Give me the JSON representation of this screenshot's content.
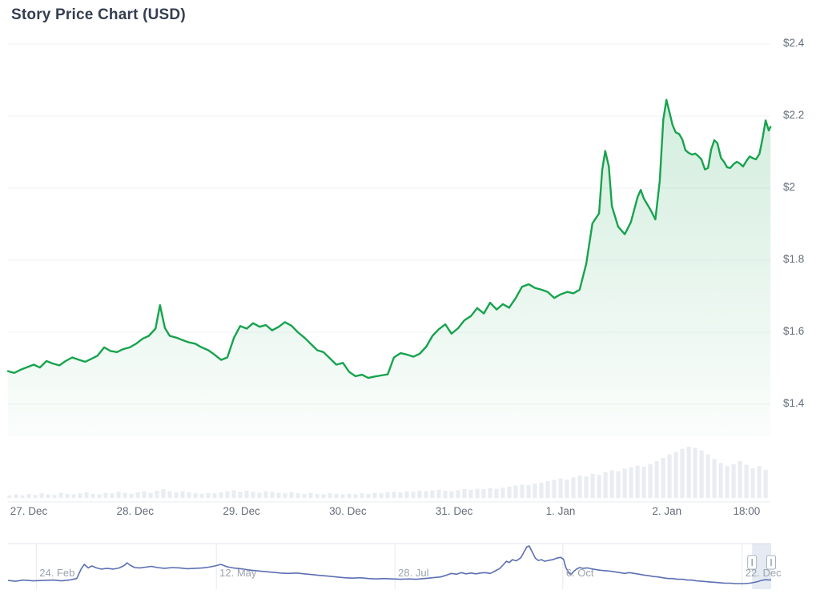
{
  "header": {
    "title": "Story Price Chart (USD)"
  },
  "colors": {
    "background": "#ffffff",
    "title_text": "#343e50",
    "axis_label": "#646d7a",
    "nav_label": "#9aa3ad",
    "grid_line": "#f1f2f5",
    "axis_line": "#e9ebef",
    "price_line": "#17a34e",
    "price_fill_top": "rgba(26,163,80,0.20)",
    "price_fill_bottom": "rgba(26,163,80,0.02)",
    "volume_bar": "#e9edf2",
    "nav_line": "#5c6fb4",
    "nav_grid": "#e7e9ee",
    "nav_border": "#e3e6ec",
    "selection_mask": "rgba(101,128,180,0.16)",
    "handle_fill": "#ffffff",
    "handle_border": "#a8b1bf",
    "handle_slit": "#97a1af"
  },
  "chart_data": {
    "type": "area",
    "title": "Story Price Chart (USD)",
    "unit": "USD",
    "grid": "horizontal",
    "legend": "none",
    "y_axis": {
      "side": "right",
      "labels": [
        "$2.4",
        "$2.2",
        "$2",
        "$1.8",
        "$1.6",
        "$1.4"
      ],
      "values": [
        2.4,
        2.2,
        2,
        1.8,
        1.6,
        1.4
      ]
    },
    "x_axis": {
      "note": "t = hours since 27 Dec 00:00",
      "ticks": [
        {
          "label": "27. Dec",
          "t": 0
        },
        {
          "label": "28. Dec",
          "t": 24
        },
        {
          "label": "29. Dec",
          "t": 48
        },
        {
          "label": "30. Dec",
          "t": 72
        },
        {
          "label": "31. Dec",
          "t": 96
        },
        {
          "label": "1. Jan",
          "t": 120
        },
        {
          "label": "2. Jan",
          "t": 144
        },
        {
          "label": "18:00",
          "t": 162
        }
      ]
    },
    "price_series": {
      "name": "Story price (USD)",
      "points": [
        [
          -4.7,
          1.492
        ],
        [
          -3.3,
          1.487
        ],
        [
          -1.8,
          1.496
        ],
        [
          -0.4,
          1.503
        ],
        [
          1.1,
          1.51
        ],
        [
          2.5,
          1.502
        ],
        [
          4,
          1.52
        ],
        [
          5.4,
          1.513
        ],
        [
          6.9,
          1.508
        ],
        [
          8.3,
          1.52
        ],
        [
          9.8,
          1.53
        ],
        [
          11.2,
          1.524
        ],
        [
          12.7,
          1.518
        ],
        [
          14.1,
          1.526
        ],
        [
          15.5,
          1.535
        ],
        [
          17,
          1.558
        ],
        [
          18.4,
          1.548
        ],
        [
          19.9,
          1.545
        ],
        [
          21.3,
          1.553
        ],
        [
          22.8,
          1.558
        ],
        [
          24.2,
          1.568
        ],
        [
          25.7,
          1.582
        ],
        [
          27.1,
          1.59
        ],
        [
          28.6,
          1.61
        ],
        [
          29.6,
          1.675
        ],
        [
          30.7,
          1.612
        ],
        [
          31.8,
          1.59
        ],
        [
          33.3,
          1.585
        ],
        [
          34.7,
          1.578
        ],
        [
          36.1,
          1.572
        ],
        [
          37.6,
          1.568
        ],
        [
          39,
          1.558
        ],
        [
          40.5,
          1.55
        ],
        [
          41.9,
          1.538
        ],
        [
          43.4,
          1.523
        ],
        [
          44.8,
          1.53
        ],
        [
          46.3,
          1.585
        ],
        [
          47.7,
          1.617
        ],
        [
          49.2,
          1.61
        ],
        [
          50.6,
          1.625
        ],
        [
          52.1,
          1.615
        ],
        [
          53.5,
          1.62
        ],
        [
          54.9,
          1.605
        ],
        [
          56.4,
          1.615
        ],
        [
          57.8,
          1.628
        ],
        [
          59.3,
          1.618
        ],
        [
          60.7,
          1.6
        ],
        [
          62.2,
          1.585
        ],
        [
          63.6,
          1.568
        ],
        [
          65.1,
          1.55
        ],
        [
          66.5,
          1.545
        ],
        [
          68,
          1.527
        ],
        [
          69.4,
          1.51
        ],
        [
          70.9,
          1.515
        ],
        [
          72.3,
          1.49
        ],
        [
          73.7,
          1.478
        ],
        [
          75.2,
          1.482
        ],
        [
          76.6,
          1.473
        ],
        [
          78.1,
          1.477
        ],
        [
          79.5,
          1.48
        ],
        [
          81,
          1.483
        ],
        [
          82.4,
          1.53
        ],
        [
          83.9,
          1.542
        ],
        [
          85.3,
          1.538
        ],
        [
          86.8,
          1.532
        ],
        [
          88.2,
          1.54
        ],
        [
          89.7,
          1.56
        ],
        [
          91.1,
          1.59
        ],
        [
          92.5,
          1.608
        ],
        [
          94,
          1.622
        ],
        [
          95.4,
          1.596
        ],
        [
          96.9,
          1.611
        ],
        [
          98.3,
          1.633
        ],
        [
          99.8,
          1.645
        ],
        [
          101.2,
          1.667
        ],
        [
          102.7,
          1.652
        ],
        [
          104.1,
          1.682
        ],
        [
          105.6,
          1.663
        ],
        [
          107,
          1.678
        ],
        [
          108.4,
          1.668
        ],
        [
          109.9,
          1.695
        ],
        [
          111.3,
          1.726
        ],
        [
          112.8,
          1.733
        ],
        [
          114.2,
          1.723
        ],
        [
          115.7,
          1.718
        ],
        [
          117.1,
          1.712
        ],
        [
          118.6,
          1.695
        ],
        [
          120,
          1.705
        ],
        [
          121.5,
          1.712
        ],
        [
          122.9,
          1.708
        ],
        [
          124.3,
          1.718
        ],
        [
          125.8,
          1.79
        ],
        [
          127.2,
          1.902
        ],
        [
          128.7,
          1.93
        ],
        [
          129.4,
          2.05
        ],
        [
          130.1,
          2.103
        ],
        [
          130.9,
          2.06
        ],
        [
          131.6,
          1.95
        ],
        [
          133,
          1.893
        ],
        [
          134.5,
          1.872
        ],
        [
          135.9,
          1.906
        ],
        [
          137.4,
          1.975
        ],
        [
          138.1,
          1.995
        ],
        [
          138.8,
          1.971
        ],
        [
          140.3,
          1.94
        ],
        [
          141.4,
          1.913
        ],
        [
          142.4,
          2.02
        ],
        [
          143.2,
          2.19
        ],
        [
          143.9,
          2.245
        ],
        [
          144.6,
          2.21
        ],
        [
          145.3,
          2.175
        ],
        [
          146,
          2.155
        ],
        [
          146.8,
          2.15
        ],
        [
          147.5,
          2.135
        ],
        [
          148.2,
          2.105
        ],
        [
          148.9,
          2.098
        ],
        [
          149.7,
          2.093
        ],
        [
          150.4,
          2.096
        ],
        [
          151.1,
          2.089
        ],
        [
          151.8,
          2.08
        ],
        [
          152.6,
          2.052
        ],
        [
          153.3,
          2.056
        ],
        [
          154,
          2.107
        ],
        [
          154.7,
          2.133
        ],
        [
          155.4,
          2.125
        ],
        [
          156.2,
          2.084
        ],
        [
          156.9,
          2.073
        ],
        [
          157.6,
          2.058
        ],
        [
          158.3,
          2.056
        ],
        [
          159.1,
          2.067
        ],
        [
          159.8,
          2.073
        ],
        [
          160.5,
          2.068
        ],
        [
          161.2,
          2.06
        ],
        [
          162,
          2.076
        ],
        [
          162.7,
          2.088
        ],
        [
          163.4,
          2.083
        ],
        [
          164.1,
          2.08
        ],
        [
          164.9,
          2.095
        ],
        [
          165.6,
          2.138
        ],
        [
          166.3,
          2.188
        ],
        [
          167,
          2.16
        ],
        [
          167.4,
          2.17
        ]
      ]
    },
    "volume_series": {
      "name": "Volume",
      "scale": "relative 0-100",
      "t_start": -4.34,
      "t_step": 1.446,
      "values": [
        5,
        7,
        5,
        8,
        6,
        9,
        7,
        6,
        10,
        8,
        7,
        9,
        11,
        8,
        7,
        10,
        9,
        12,
        10,
        8,
        11,
        13,
        10,
        14,
        17,
        13,
        11,
        13,
        11,
        9,
        8,
        10,
        9,
        11,
        13,
        15,
        12,
        14,
        12,
        10,
        13,
        12,
        10,
        9,
        11,
        9,
        8,
        10,
        8,
        7,
        9,
        8,
        7,
        8,
        7,
        9,
        8,
        10,
        9,
        11,
        12,
        11,
        13,
        12,
        14,
        13,
        15,
        16,
        14,
        13,
        15,
        17,
        16,
        18,
        17,
        19,
        18,
        20,
        22,
        24,
        26,
        25,
        28,
        30,
        33,
        35,
        38,
        36,
        40,
        44,
        42,
        47,
        45,
        50,
        54,
        52,
        57,
        60,
        63,
        61,
        66,
        72,
        78,
        85,
        90,
        96,
        100,
        98,
        93,
        85,
        76,
        68,
        62,
        66,
        72,
        65,
        58,
        62,
        55
      ]
    },
    "navigator": {
      "type": "line",
      "scale": "relative 0-100, f = fraction of full range",
      "ticks": [
        {
          "label": "24. Feb",
          "f": 0.037
        },
        {
          "label": "12. May",
          "f": 0.273
        },
        {
          "label": "28. Jul",
          "f": 0.507
        },
        {
          "label": "6. Oct",
          "f": 0.727
        },
        {
          "label": "22. Dec",
          "f": 0.962
        }
      ],
      "selection": {
        "from": 0.975,
        "to": 1
      },
      "points": [
        [
          0,
          12
        ],
        [
          0.01,
          10
        ],
        [
          0.02,
          13
        ],
        [
          0.033,
          11
        ],
        [
          0.045,
          12
        ],
        [
          0.06,
          13
        ],
        [
          0.07,
          11
        ],
        [
          0.08,
          13
        ],
        [
          0.09,
          17
        ],
        [
          0.096,
          42
        ],
        [
          0.1,
          53
        ],
        [
          0.105,
          44
        ],
        [
          0.11,
          49
        ],
        [
          0.116,
          44
        ],
        [
          0.122,
          41
        ],
        [
          0.13,
          43
        ],
        [
          0.138,
          41
        ],
        [
          0.146,
          44
        ],
        [
          0.152,
          50
        ],
        [
          0.156,
          57
        ],
        [
          0.16,
          51
        ],
        [
          0.166,
          45
        ],
        [
          0.173,
          44
        ],
        [
          0.18,
          46
        ],
        [
          0.188,
          48
        ],
        [
          0.196,
          45
        ],
        [
          0.205,
          43
        ],
        [
          0.215,
          45
        ],
        [
          0.225,
          44
        ],
        [
          0.235,
          42
        ],
        [
          0.245,
          43
        ],
        [
          0.255,
          44
        ],
        [
          0.263,
          46
        ],
        [
          0.271,
          49
        ],
        [
          0.279,
          53
        ],
        [
          0.287,
          47
        ],
        [
          0.295,
          44
        ],
        [
          0.305,
          42
        ],
        [
          0.315,
          39
        ],
        [
          0.325,
          37
        ],
        [
          0.336,
          35
        ],
        [
          0.346,
          33
        ],
        [
          0.357,
          31
        ],
        [
          0.367,
          30
        ],
        [
          0.378,
          31
        ],
        [
          0.388,
          29
        ],
        [
          0.399,
          27
        ],
        [
          0.409,
          25
        ],
        [
          0.42,
          23
        ],
        [
          0.43,
          21
        ],
        [
          0.441,
          19
        ],
        [
          0.451,
          18
        ],
        [
          0.462,
          19
        ],
        [
          0.472,
          17
        ],
        [
          0.483,
          16
        ],
        [
          0.493,
          17
        ],
        [
          0.504,
          16
        ],
        [
          0.514,
          15
        ],
        [
          0.525,
          16
        ],
        [
          0.535,
          15
        ],
        [
          0.546,
          17
        ],
        [
          0.556,
          19
        ],
        [
          0.567,
          21
        ],
        [
          0.575,
          26
        ],
        [
          0.581,
          30
        ],
        [
          0.588,
          28
        ],
        [
          0.594,
          32
        ],
        [
          0.6,
          29
        ],
        [
          0.607,
          31
        ],
        [
          0.613,
          29
        ],
        [
          0.619,
          31
        ],
        [
          0.625,
          32
        ],
        [
          0.632,
          30
        ],
        [
          0.638,
          36
        ],
        [
          0.644,
          42
        ],
        [
          0.649,
          52
        ],
        [
          0.653,
          61
        ],
        [
          0.657,
          58
        ],
        [
          0.661,
          65
        ],
        [
          0.666,
          62
        ],
        [
          0.672,
          70
        ],
        [
          0.676,
          84
        ],
        [
          0.68,
          98
        ],
        [
          0.683,
          100
        ],
        [
          0.686,
          88
        ],
        [
          0.691,
          69
        ],
        [
          0.695,
          63
        ],
        [
          0.699,
          65
        ],
        [
          0.703,
          61
        ],
        [
          0.708,
          63
        ],
        [
          0.714,
          65
        ],
        [
          0.719,
          69
        ],
        [
          0.724,
          71
        ],
        [
          0.728,
          66
        ],
        [
          0.731,
          45
        ],
        [
          0.735,
          31
        ],
        [
          0.738,
          27
        ],
        [
          0.741,
          35
        ],
        [
          0.745,
          41
        ],
        [
          0.749,
          45
        ],
        [
          0.753,
          43
        ],
        [
          0.759,
          44
        ],
        [
          0.764,
          42
        ],
        [
          0.77,
          40
        ],
        [
          0.777,
          38
        ],
        [
          0.783,
          37
        ],
        [
          0.789,
          36
        ],
        [
          0.795,
          34
        ],
        [
          0.802,
          32
        ],
        [
          0.808,
          30
        ],
        [
          0.814,
          32
        ],
        [
          0.821,
          30
        ],
        [
          0.827,
          28
        ],
        [
          0.833,
          26
        ],
        [
          0.84,
          24
        ],
        [
          0.846,
          22
        ],
        [
          0.852,
          21
        ],
        [
          0.858,
          19
        ],
        [
          0.865,
          17
        ],
        [
          0.871,
          17
        ],
        [
          0.877,
          15
        ],
        [
          0.884,
          15
        ],
        [
          0.89,
          13
        ],
        [
          0.896,
          13
        ],
        [
          0.902,
          11
        ],
        [
          0.909,
          10
        ],
        [
          0.915,
          9
        ],
        [
          0.921,
          8
        ],
        [
          0.928,
          7
        ],
        [
          0.934,
          6
        ],
        [
          0.94,
          5
        ],
        [
          0.947,
          5
        ],
        [
          0.953,
          4
        ],
        [
          0.959,
          4
        ],
        [
          0.965,
          4
        ],
        [
          0.972,
          5
        ],
        [
          0.977,
          7
        ],
        [
          0.982,
          9
        ],
        [
          0.987,
          12
        ],
        [
          0.993,
          14
        ],
        [
          0.997,
          13
        ],
        [
          1,
          14
        ]
      ]
    }
  }
}
